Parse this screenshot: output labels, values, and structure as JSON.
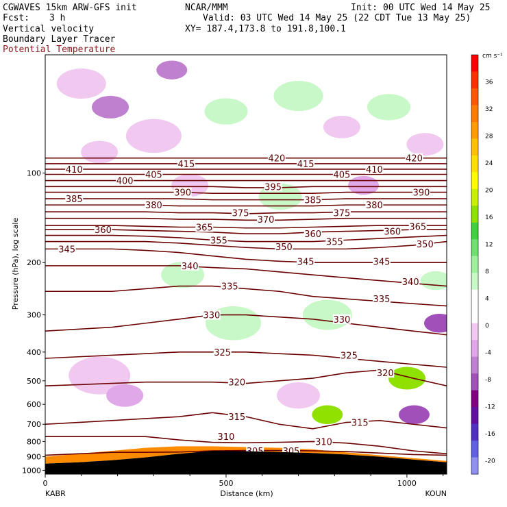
{
  "header": {
    "model": "CGWAVES 15km ARW-GFS init",
    "center": "NCAR/MMM",
    "init": "Init: 00 UTC Wed 14 May 25",
    "fcst_label": "Fcst:",
    "fcst_value": "3 h",
    "valid": "Valid: 03 UTC Wed 14 May 25 (22 CDT Tue 13 May 25)",
    "field1": "Vertical velocity",
    "field2": "Boundary Layer Tracer",
    "field3": "Potential Temperature",
    "xy": "XY= 187.4,173.8 to 191.8,100.1"
  },
  "colors": {
    "contour": "#6b0000",
    "tracer_fill": "#ff8c00",
    "terrain": "#000000"
  },
  "chart_data": {
    "type": "contour-cross-section",
    "xlabel": "Distance (km)",
    "ylabel": "Pressure (hPa), log scale",
    "x_ticks": [
      0,
      500,
      1000
    ],
    "xlim": [
      0,
      1110
    ],
    "y_ticks": [
      100,
      200,
      300,
      400,
      500,
      600,
      700,
      800,
      900,
      1000
    ],
    "ylim": [
      1030,
      40
    ],
    "y_scale": "log",
    "left_station": "KABR",
    "right_station": "KOUN",
    "colorbar": {
      "unit": "cm s⁻¹",
      "ticks": [
        36,
        32,
        28,
        24,
        20,
        16,
        12,
        8,
        4,
        0,
        -4,
        -8,
        -12,
        -16,
        -20
      ],
      "colors": [
        "#ff0000",
        "#ff3000",
        "#ff5800",
        "#ff7a00",
        "#ff9a00",
        "#ffc000",
        "#ffe000",
        "#ffff00",
        "#c8f000",
        "#90e000",
        "#40d040",
        "#70e070",
        "#a0f0a0",
        "#c8f8c8",
        "#ffffff",
        "#ffffff",
        "#f0c8f0",
        "#e0a8e8",
        "#c080d0",
        "#a050b8",
        "#800080",
        "#6010a0",
        "#5030c0",
        "#6060e0",
        "#9090f0"
      ]
    },
    "theta_contours": [
      {
        "value": 305,
        "p": [
          890,
          880,
          870,
          870,
          868,
          860,
          858,
          858,
          860,
          865,
          875,
          885,
          890
        ],
        "labels": [
          [
            580,
            860
          ],
          [
            680,
            860
          ]
        ]
      },
      {
        "value": 310,
        "p": [
          770,
          770,
          770,
          770,
          790,
          805,
          808,
          805,
          800,
          810,
          830,
          860,
          880
        ],
        "labels": [
          [
            500,
            770
          ],
          [
            770,
            800
          ]
        ]
      },
      {
        "value": 315,
        "p": [
          700,
          690,
          680,
          670,
          660,
          640,
          660,
          700,
          725,
          690,
          680,
          700,
          720
        ],
        "labels": [
          [
            530,
            660
          ],
          [
            870,
            690
          ]
        ]
      },
      {
        "value": 320,
        "p": [
          520,
          515,
          510,
          505,
          505,
          505,
          510,
          500,
          490,
          470,
          460,
          490,
          520
        ],
        "labels": [
          [
            530,
            505
          ],
          [
            940,
            470
          ]
        ]
      },
      {
        "value": 325,
        "p": [
          420,
          415,
          410,
          405,
          400,
          400,
          400,
          405,
          410,
          420,
          430,
          440,
          450
        ],
        "labels": [
          [
            490,
            400
          ],
          [
            840,
            410
          ]
        ]
      },
      {
        "value": 330,
        "p": [
          340,
          335,
          330,
          320,
          310,
          300,
          300,
          305,
          310,
          320,
          330,
          340,
          350
        ],
        "labels": [
          [
            460,
            300
          ],
          [
            820,
            310
          ]
        ]
      },
      {
        "value": 335,
        "p": [
          250,
          250,
          250,
          245,
          240,
          240,
          245,
          250,
          260,
          265,
          270,
          275,
          280
        ],
        "labels": [
          [
            510,
            240
          ],
          [
            930,
            265
          ]
        ]
      },
      {
        "value": 340,
        "p": [
          205,
          205,
          205,
          205,
          205,
          208,
          210,
          215,
          220,
          225,
          230,
          235,
          240
        ],
        "labels": [
          [
            400,
            205
          ],
          [
            1010,
            232
          ]
        ]
      },
      {
        "value": 345,
        "p": [
          180,
          180,
          180,
          182,
          185,
          190,
          195,
          198,
          200,
          200,
          200,
          200,
          200
        ],
        "labels": [
          [
            60,
            180
          ],
          [
            720,
            198
          ],
          [
            930,
            198
          ]
        ]
      },
      {
        "value": 350,
        "p": [
          170,
          170,
          170,
          170,
          172,
          175,
          178,
          180,
          180,
          180,
          178,
          175,
          170
        ],
        "labels": [
          [
            660,
            177
          ],
          [
            1050,
            173
          ]
        ]
      },
      {
        "value": 355,
        "p": [
          162,
          162,
          162,
          163,
          165,
          168,
          170,
          170,
          170,
          168,
          166,
          164,
          162
        ],
        "labels": [
          [
            480,
            168
          ],
          [
            800,
            170
          ]
        ]
      },
      {
        "value": 360,
        "p": [
          155,
          155,
          155,
          156,
          157,
          158,
          160,
          160,
          158,
          157,
          156,
          155,
          155
        ],
        "labels": [
          [
            160,
            155
          ],
          [
            740,
            160
          ],
          [
            960,
            157
          ]
        ]
      },
      {
        "value": 365,
        "p": [
          150,
          150,
          150,
          151,
          152,
          152,
          153,
          153,
          152,
          151,
          150,
          150,
          150
        ],
        "labels": [
          [
            440,
            152
          ],
          [
            1030,
            151
          ]
        ]
      },
      {
        "value": 370,
        "p": [
          142,
          142,
          142,
          142,
          143,
          143,
          144,
          144,
          143,
          142,
          142,
          142,
          142
        ],
        "labels": [
          [
            610,
            143
          ]
        ]
      },
      {
        "value": 375,
        "p": [
          135,
          135,
          135,
          135,
          136,
          136,
          137,
          136,
          136,
          135,
          135,
          135,
          135
        ],
        "labels": [
          [
            540,
            136
          ],
          [
            820,
            136
          ]
        ]
      },
      {
        "value": 380,
        "p": [
          128,
          128,
          128,
          128,
          129,
          129,
          129,
          129,
          129,
          128,
          128,
          128,
          128
        ],
        "labels": [
          [
            300,
            128
          ],
          [
            910,
            128
          ]
        ]
      },
      {
        "value": 385,
        "p": [
          122,
          122,
          122,
          122,
          122,
          123,
          123,
          123,
          123,
          122,
          122,
          122,
          122
        ],
        "labels": [
          [
            80,
            122
          ],
          [
            740,
            123
          ]
        ]
      },
      {
        "value": 390,
        "p": [
          116,
          116,
          116,
          116,
          116,
          117,
          117,
          117,
          117,
          116,
          116,
          116,
          116
        ],
        "labels": [
          [
            380,
            116
          ],
          [
            1040,
            116
          ]
        ]
      },
      {
        "value": 395,
        "p": [
          111,
          111,
          111,
          111,
          111,
          111,
          112,
          112,
          111,
          111,
          111,
          111,
          111
        ],
        "labels": [
          [
            630,
            111
          ]
        ]
      },
      {
        "value": 400,
        "p": [
          106,
          106,
          106,
          106,
          106,
          106,
          106,
          106,
          106,
          106,
          106,
          106,
          106
        ],
        "labels": [
          [
            220,
            106
          ]
        ]
      },
      {
        "value": 405,
        "p": [
          101,
          101,
          101,
          101,
          101,
          101,
          101,
          101,
          101,
          101,
          101,
          101,
          101
        ],
        "labels": [
          [
            300,
            101
          ],
          [
            820,
            101
          ]
        ]
      },
      {
        "value": 410,
        "p": [
          97,
          97,
          97,
          97,
          97,
          97,
          97,
          97,
          97,
          97,
          97,
          97,
          97
        ],
        "labels": [
          [
            80,
            97
          ],
          [
            910,
            97
          ]
        ]
      },
      {
        "value": 415,
        "p": [
          93,
          93,
          93,
          93,
          93,
          93,
          93,
          93,
          93,
          93,
          93,
          93,
          93
        ],
        "labels": [
          [
            390,
            93
          ],
          [
            720,
            93
          ]
        ]
      },
      {
        "value": 420,
        "p": [
          89,
          89,
          89,
          89,
          89,
          89,
          89,
          89,
          89,
          89,
          89,
          89,
          89
        ],
        "labels": [
          [
            640,
            89
          ],
          [
            1020,
            89
          ]
        ]
      }
    ],
    "contour_x": [
      0,
      92,
      185,
      277,
      370,
      462,
      555,
      647,
      740,
      832,
      925,
      1017,
      1110
    ],
    "terrain_p": [
      950,
      940,
      925,
      905,
      880,
      860,
      862,
      868,
      875,
      885,
      900,
      920,
      940
    ],
    "tracer_top_p": [
      900,
      880,
      860,
      840,
      830,
      830,
      835,
      840,
      850,
      870,
      890,
      910,
      930
    ],
    "w_blobs": [
      {
        "x": 100,
        "p": 50,
        "r": 40,
        "c": "#f0c8f0"
      },
      {
        "x": 180,
        "p": 60,
        "r": 30,
        "c": "#c080d0"
      },
      {
        "x": 350,
        "p": 45,
        "r": 25,
        "c": "#c080d0"
      },
      {
        "x": 500,
        "p": 62,
        "r": 35,
        "c": "#c8f8c8"
      },
      {
        "x": 700,
        "p": 55,
        "r": 40,
        "c": "#c8f8c8"
      },
      {
        "x": 820,
        "p": 70,
        "r": 30,
        "c": "#f0c8f0"
      },
      {
        "x": 300,
        "p": 75,
        "r": 45,
        "c": "#f0c8f0"
      },
      {
        "x": 950,
        "p": 60,
        "r": 35,
        "c": "#c8f8c8"
      },
      {
        "x": 1050,
        "p": 80,
        "r": 30,
        "c": "#f0c8f0"
      },
      {
        "x": 150,
        "p": 85,
        "r": 30,
        "c": "#f0c8f0"
      },
      {
        "x": 400,
        "p": 110,
        "r": 30,
        "c": "#f0c8f0"
      },
      {
        "x": 650,
        "p": 120,
        "r": 35,
        "c": "#c8f8c8"
      },
      {
        "x": 880,
        "p": 110,
        "r": 25,
        "c": "#e0a8e8"
      },
      {
        "x": 520,
        "p": 320,
        "r": 45,
        "c": "#c8f8c8"
      },
      {
        "x": 780,
        "p": 300,
        "r": 40,
        "c": "#c8f8c8"
      },
      {
        "x": 150,
        "p": 480,
        "r": 50,
        "c": "#f0c8f0"
      },
      {
        "x": 220,
        "p": 560,
        "r": 30,
        "c": "#e0a8e8"
      },
      {
        "x": 700,
        "p": 560,
        "r": 35,
        "c": "#f0c8f0"
      },
      {
        "x": 1000,
        "p": 490,
        "r": 30,
        "c": "#90e000"
      },
      {
        "x": 1020,
        "p": 650,
        "r": 25,
        "c": "#a050b8"
      },
      {
        "x": 780,
        "p": 650,
        "r": 25,
        "c": "#90e000"
      },
      {
        "x": 1090,
        "p": 320,
        "r": 25,
        "c": "#a050b8"
      },
      {
        "x": 1080,
        "p": 230,
        "r": 25,
        "c": "#c8f8c8"
      },
      {
        "x": 380,
        "p": 220,
        "r": 35,
        "c": "#c8f8c8"
      }
    ]
  }
}
